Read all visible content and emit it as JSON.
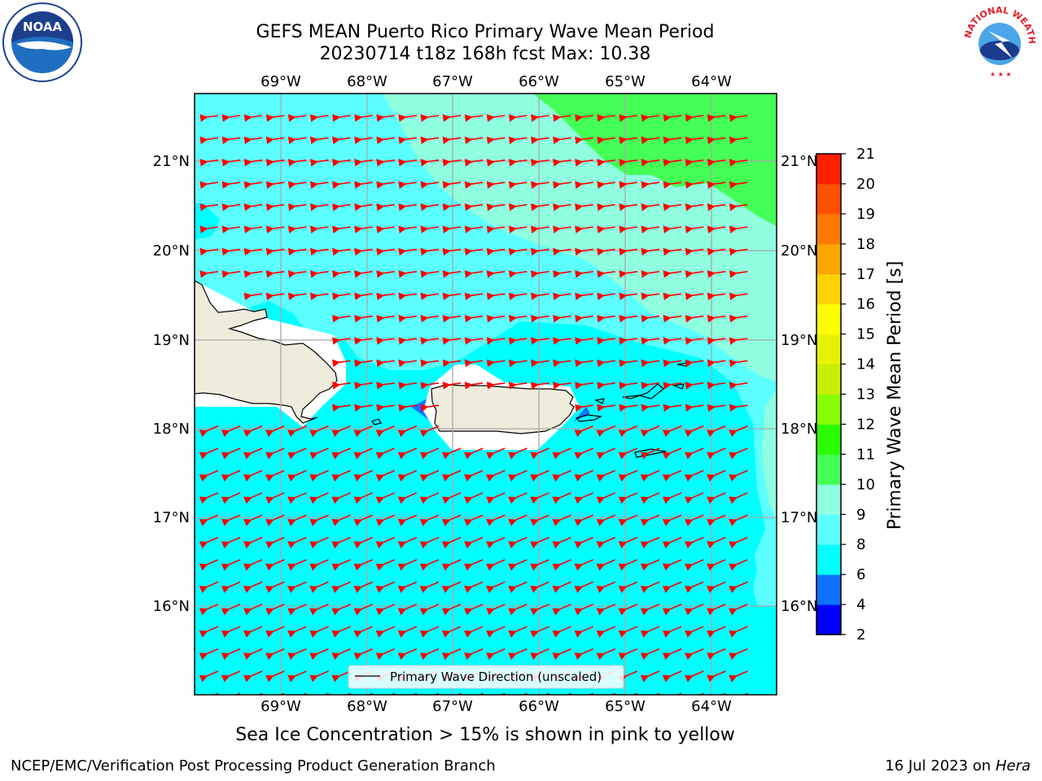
{
  "title_line1": "GEFS MEAN Puerto Rico Primary Wave Mean Period",
  "title_line2": "20230714 t18z 168h fcst   Max: 10.38",
  "legend_label": "Primary Wave Direction (unscaled)",
  "sea_ice_note": "Sea Ice Concentration > 15% is shown in pink to yellow",
  "footer_left": "NCEP/EMC/Verification Post Processing Product Generation Branch",
  "footer_right_date": "16 Jul 2023 on ",
  "footer_right_host": "Hera",
  "logos": {
    "left": {
      "icon": "noaa-logo-icon",
      "text": "NOAA"
    },
    "right": {
      "icon": "nws-logo-icon",
      "text": "NATIONAL WEATHER SERVICE"
    }
  },
  "colorbar": {
    "label": "Primary Wave Mean Period [s]",
    "ticks": [
      "2",
      "4",
      "6",
      "8",
      "9",
      "10",
      "11",
      "12",
      "13",
      "14",
      "15",
      "16",
      "17",
      "18",
      "19",
      "20",
      "21"
    ],
    "colors": [
      "#0000ff",
      "#0c72ff",
      "#00ffff",
      "#5cffff",
      "#8fffdf",
      "#44ff55",
      "#2aff00",
      "#88ff00",
      "#c8ee00",
      "#e8f200",
      "#ffff00",
      "#ffd400",
      "#ffa500",
      "#ff7800",
      "#ff5000",
      "#ff2000"
    ]
  },
  "map": {
    "lon_labels": [
      "69°W",
      "68°W",
      "67°W",
      "66°W",
      "65°W",
      "64°W"
    ],
    "lat_labels": [
      "21°N",
      "20°N",
      "19°N",
      "18°N",
      "17°N",
      "16°N"
    ],
    "field_colors": {
      "period_6_8": "#00ffff",
      "period_8_9": "#5cffff",
      "period_9_10": "#8fffdf",
      "period_10_11": "#44ff55",
      "period_4_6": "#0c72ff",
      "land": "#efecdc",
      "arrow": "#ff0000"
    },
    "arrow_direction": "westward"
  }
}
